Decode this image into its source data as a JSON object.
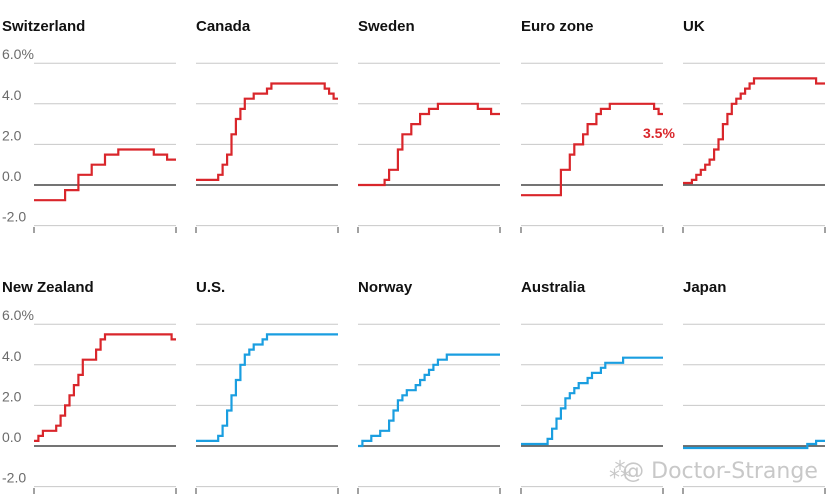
{
  "chart_data": {
    "type": "line",
    "subtype": "step small multiples",
    "ylim": [
      -2.0,
      6.0
    ],
    "yticks": [
      -2.0,
      0.0,
      2.0,
      4.0,
      6.0
    ],
    "ytick_labels": [
      "-2.0",
      "0.0",
      "2.0",
      "4.0",
      "6.0%"
    ],
    "colors": {
      "red": "#d9262b",
      "blue": "#1a9ee0",
      "grid": "#c8c8c8",
      "zero": "#222222"
    },
    "panels": [
      {
        "name": "Switzerland",
        "color": "red",
        "values": [
          -0.75,
          -0.75,
          -0.75,
          -0.75,
          -0.75,
          -0.75,
          -0.75,
          -0.25,
          -0.25,
          -0.25,
          0.5,
          0.5,
          0.5,
          1.0,
          1.0,
          1.0,
          1.5,
          1.5,
          1.5,
          1.75,
          1.75,
          1.75,
          1.75,
          1.75,
          1.75,
          1.75,
          1.75,
          1.5,
          1.5,
          1.5,
          1.25,
          1.25
        ]
      },
      {
        "name": "Canada",
        "color": "red",
        "values": [
          0.25,
          0.25,
          0.25,
          0.25,
          0.25,
          0.5,
          1.0,
          1.5,
          2.5,
          3.25,
          3.75,
          4.25,
          4.25,
          4.5,
          4.5,
          4.5,
          4.75,
          5.0,
          5.0,
          5.0,
          5.0,
          5.0,
          5.0,
          5.0,
          5.0,
          5.0,
          5.0,
          5.0,
          5.0,
          4.75,
          4.5,
          4.25
        ]
      },
      {
        "name": "Sweden",
        "color": "red",
        "values": [
          0.0,
          0.0,
          0.0,
          0.0,
          0.0,
          0.0,
          0.25,
          0.75,
          0.75,
          1.75,
          2.5,
          2.5,
          3.0,
          3.0,
          3.5,
          3.5,
          3.75,
          3.75,
          4.0,
          4.0,
          4.0,
          4.0,
          4.0,
          4.0,
          4.0,
          4.0,
          4.0,
          3.75,
          3.75,
          3.75,
          3.5,
          3.5
        ]
      },
      {
        "name": "Euro zone",
        "color": "red",
        "annotation": "3.5%",
        "values": [
          -0.5,
          -0.5,
          -0.5,
          -0.5,
          -0.5,
          -0.5,
          -0.5,
          -0.5,
          -0.5,
          0.75,
          0.75,
          1.5,
          2.0,
          2.0,
          2.5,
          3.0,
          3.0,
          3.5,
          3.75,
          3.75,
          4.0,
          4.0,
          4.0,
          4.0,
          4.0,
          4.0,
          4.0,
          4.0,
          4.0,
          4.0,
          3.75,
          3.5
        ]
      },
      {
        "name": "UK",
        "color": "red",
        "values": [
          0.1,
          0.1,
          0.25,
          0.5,
          0.75,
          1.0,
          1.25,
          1.75,
          2.25,
          3.0,
          3.5,
          4.0,
          4.25,
          4.5,
          4.75,
          5.0,
          5.25,
          5.25,
          5.25,
          5.25,
          5.25,
          5.25,
          5.25,
          5.25,
          5.25,
          5.25,
          5.25,
          5.25,
          5.25,
          5.25,
          5.0,
          5.0
        ]
      },
      {
        "name": "New Zealand",
        "color": "red",
        "values": [
          0.25,
          0.5,
          0.75,
          0.75,
          0.75,
          1.0,
          1.5,
          2.0,
          2.5,
          3.0,
          3.5,
          4.25,
          4.25,
          4.25,
          4.75,
          5.25,
          5.5,
          5.5,
          5.5,
          5.5,
          5.5,
          5.5,
          5.5,
          5.5,
          5.5,
          5.5,
          5.5,
          5.5,
          5.5,
          5.5,
          5.5,
          5.25
        ]
      },
      {
        "name": "U.S.",
        "color": "blue",
        "values": [
          0.25,
          0.25,
          0.25,
          0.25,
          0.25,
          0.5,
          1.0,
          1.75,
          2.5,
          3.25,
          4.0,
          4.5,
          4.75,
          5.0,
          5.0,
          5.25,
          5.5,
          5.5,
          5.5,
          5.5,
          5.5,
          5.5,
          5.5,
          5.5,
          5.5,
          5.5,
          5.5,
          5.5,
          5.5,
          5.5,
          5.5,
          5.5
        ]
      },
      {
        "name": "Norway",
        "color": "blue",
        "values": [
          0.0,
          0.25,
          0.25,
          0.5,
          0.5,
          0.75,
          0.75,
          1.25,
          1.75,
          2.25,
          2.5,
          2.75,
          2.75,
          3.0,
          3.25,
          3.5,
          3.75,
          4.0,
          4.25,
          4.25,
          4.5,
          4.5,
          4.5,
          4.5,
          4.5,
          4.5,
          4.5,
          4.5,
          4.5,
          4.5,
          4.5,
          4.5
        ]
      },
      {
        "name": "Australia",
        "color": "blue",
        "values": [
          0.1,
          0.1,
          0.1,
          0.1,
          0.1,
          0.1,
          0.35,
          0.85,
          1.35,
          1.85,
          2.35,
          2.6,
          2.85,
          3.1,
          3.1,
          3.35,
          3.6,
          3.6,
          3.85,
          4.1,
          4.1,
          4.1,
          4.1,
          4.35,
          4.35,
          4.35,
          4.35,
          4.35,
          4.35,
          4.35,
          4.35,
          4.35
        ]
      },
      {
        "name": "Japan",
        "color": "blue",
        "values": [
          -0.1,
          -0.1,
          -0.1,
          -0.1,
          -0.1,
          -0.1,
          -0.1,
          -0.1,
          -0.1,
          -0.1,
          -0.1,
          -0.1,
          -0.1,
          -0.1,
          -0.1,
          -0.1,
          -0.1,
          -0.1,
          -0.1,
          -0.1,
          -0.1,
          -0.1,
          -0.1,
          -0.1,
          -0.1,
          -0.1,
          -0.1,
          -0.1,
          0.1,
          0.1,
          0.25,
          0.25
        ]
      }
    ]
  },
  "watermark": "@ Doctor-Strange"
}
